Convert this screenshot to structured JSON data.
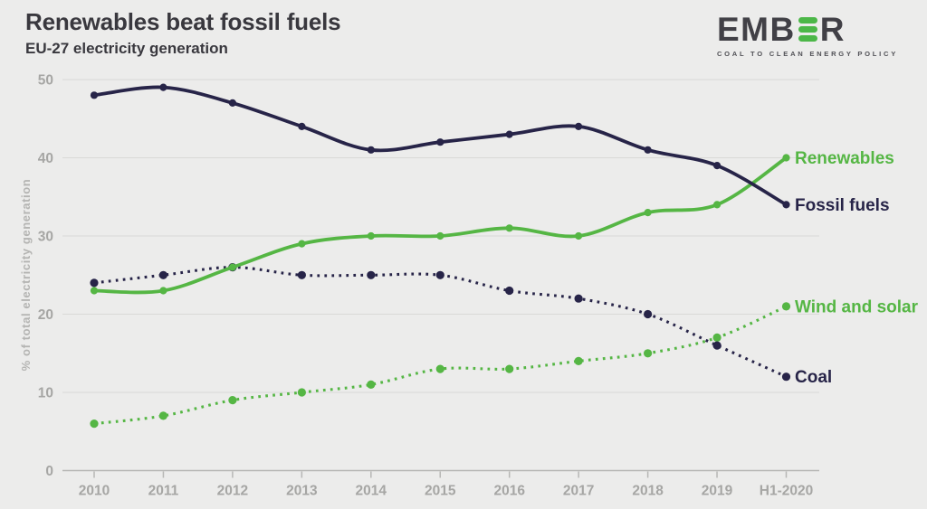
{
  "header": {
    "title": "Renewables beat fossil fuels",
    "subtitle": "EU-27 electricity generation"
  },
  "logo": {
    "text_left": "EMB",
    "text_right": "R",
    "tagline": "COAL TO CLEAN ENERGY POLICY",
    "bar_color": "#4cb748"
  },
  "colors": {
    "green": "#55b644",
    "navy": "#272448",
    "background": "#ececeb",
    "gridline": "#d9d9d7",
    "axis": "#b7b7b5",
    "tick_label": "#a6a6a4"
  },
  "chart_data": {
    "type": "line",
    "title": "Renewables beat fossil fuels",
    "subtitle": "EU-27 electricity generation",
    "x": [
      "2010",
      "2011",
      "2012",
      "2013",
      "2014",
      "2015",
      "2016",
      "2017",
      "2018",
      "2019",
      "H1-2020"
    ],
    "xlabel": "",
    "ylabel": "% of total electricity generation",
    "ylim": [
      0,
      50
    ],
    "yticks": [
      0,
      10,
      20,
      30,
      40,
      50
    ],
    "grid": true,
    "legend_position": "right-of-line-end",
    "series": [
      {
        "name": "Wind and solar",
        "color": "green",
        "style": "dotted",
        "values": [
          6,
          7,
          9,
          10,
          11,
          13,
          13,
          14,
          15,
          17,
          21
        ]
      },
      {
        "name": "Coal",
        "color": "navy",
        "style": "dotted",
        "values": [
          24,
          25,
          26,
          25,
          25,
          25,
          23,
          22,
          20,
          16,
          12
        ]
      },
      {
        "name": "Renewables",
        "color": "green",
        "style": "solid",
        "values": [
          23,
          23,
          26,
          29,
          30,
          30,
          31,
          30,
          33,
          34,
          40
        ]
      },
      {
        "name": "Fossil fuels",
        "color": "navy",
        "style": "solid",
        "values": [
          48,
          49,
          47,
          44,
          41,
          42,
          43,
          44,
          41,
          39,
          34
        ]
      }
    ]
  }
}
